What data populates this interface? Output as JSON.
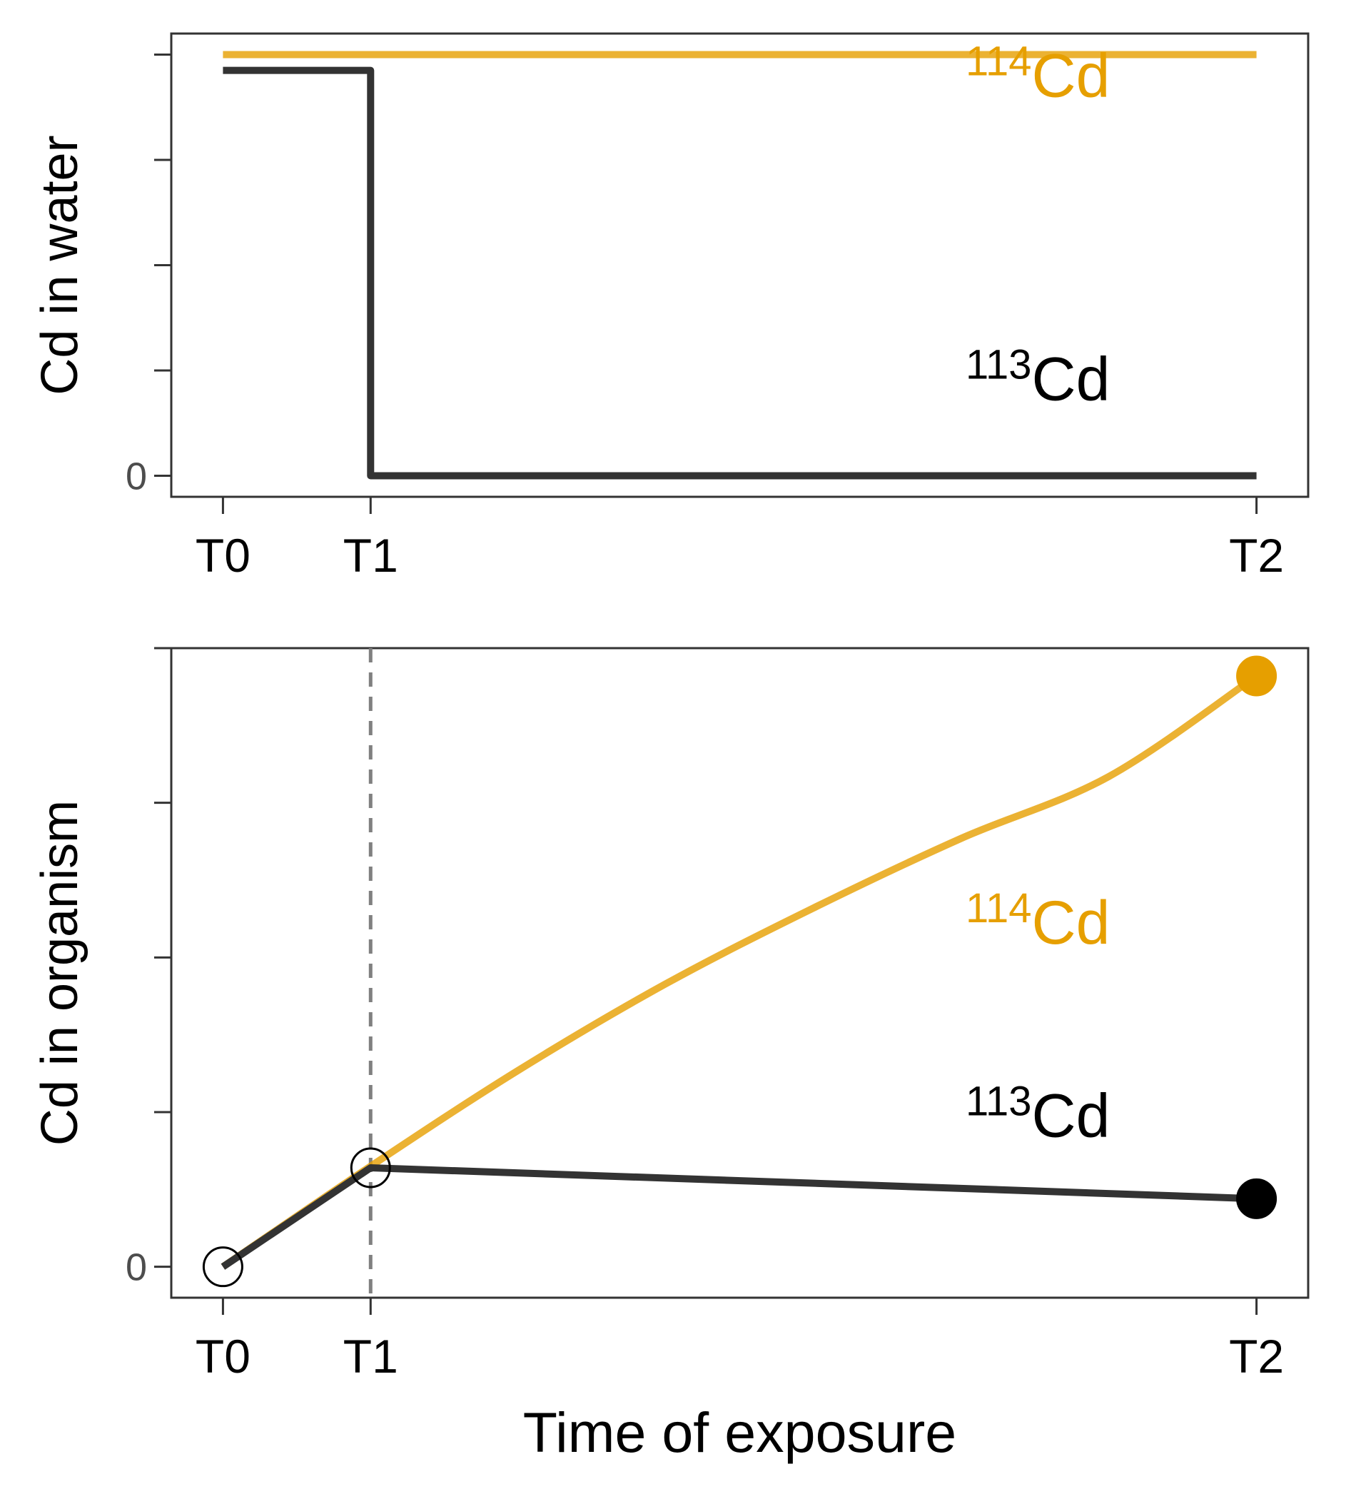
{
  "chart_data": [
    {
      "type": "line",
      "title": "",
      "xlabel": "",
      "ylabel": "Cd in water",
      "x_ticks": [
        "T0",
        "T1",
        "T2"
      ],
      "x_positions": [
        0,
        1,
        7
      ],
      "xlim": [
        -0.35,
        7.35
      ],
      "ylim": [
        -0.2,
        4.2
      ],
      "y_tick_values": [
        0,
        1,
        2,
        3,
        4
      ],
      "y_tick_labels": [
        "0",
        "",
        "",
        "",
        ""
      ],
      "grid": false,
      "series": [
        {
          "name": "114Cd",
          "color": "#E69F00",
          "x": [
            0,
            7
          ],
          "y": [
            4,
            4
          ]
        },
        {
          "name": "113Cd",
          "color": "#333333",
          "x": [
            0,
            1,
            1,
            7
          ],
          "y": [
            3.85,
            3.85,
            0,
            0
          ]
        }
      ],
      "annotations": [
        {
          "mass": "114",
          "element": "Cd",
          "color": "#E69F00",
          "x": 5.03,
          "y": 3.6
        },
        {
          "mass": "113",
          "element": "Cd",
          "color": "#000000",
          "x": 5.03,
          "y": 0.72
        }
      ]
    },
    {
      "type": "line",
      "title": "",
      "xlabel": "Time of exposure",
      "ylabel": "Cd in organism",
      "x_ticks": [
        "T0",
        "T1",
        "T2"
      ],
      "x_positions": [
        0,
        1,
        7
      ],
      "xlim": [
        -0.35,
        7.35
      ],
      "ylim": [
        -0.2,
        4.0
      ],
      "y_tick_values": [
        0,
        1,
        2,
        3,
        4
      ],
      "y_tick_labels": [
        "0",
        "",
        "",
        "",
        ""
      ],
      "grid": false,
      "vline": {
        "x": 1,
        "color": "#808080",
        "style": "dashed"
      },
      "series": [
        {
          "name": "114Cd",
          "color": "#E69F00",
          "x": [
            0,
            1,
            2,
            3,
            4,
            5,
            6,
            7
          ],
          "y": [
            0,
            0.65,
            1.27,
            1.83,
            2.32,
            2.77,
            3.17,
            3.82
          ]
        },
        {
          "name": "113Cd",
          "color": "#333333",
          "x": [
            0,
            1,
            7
          ],
          "y": [
            0,
            0.64,
            0.44
          ]
        }
      ],
      "points": [
        {
          "x": 0,
          "y": 0,
          "fill": "none",
          "stroke": "#000000"
        },
        {
          "x": 1,
          "y": 0.64,
          "fill": "none",
          "stroke": "#000000"
        },
        {
          "x": 7,
          "y": 3.82,
          "fill": "#E69F00",
          "stroke": "#E69F00"
        },
        {
          "x": 7,
          "y": 0.44,
          "fill": "#000000",
          "stroke": "#000000"
        }
      ],
      "annotations": [
        {
          "mass": "114",
          "element": "Cd",
          "color": "#E69F00",
          "x": 5.03,
          "y": 2.09
        },
        {
          "mass": "113",
          "element": "Cd",
          "color": "#000000",
          "x": 5.03,
          "y": 0.84
        }
      ]
    }
  ]
}
